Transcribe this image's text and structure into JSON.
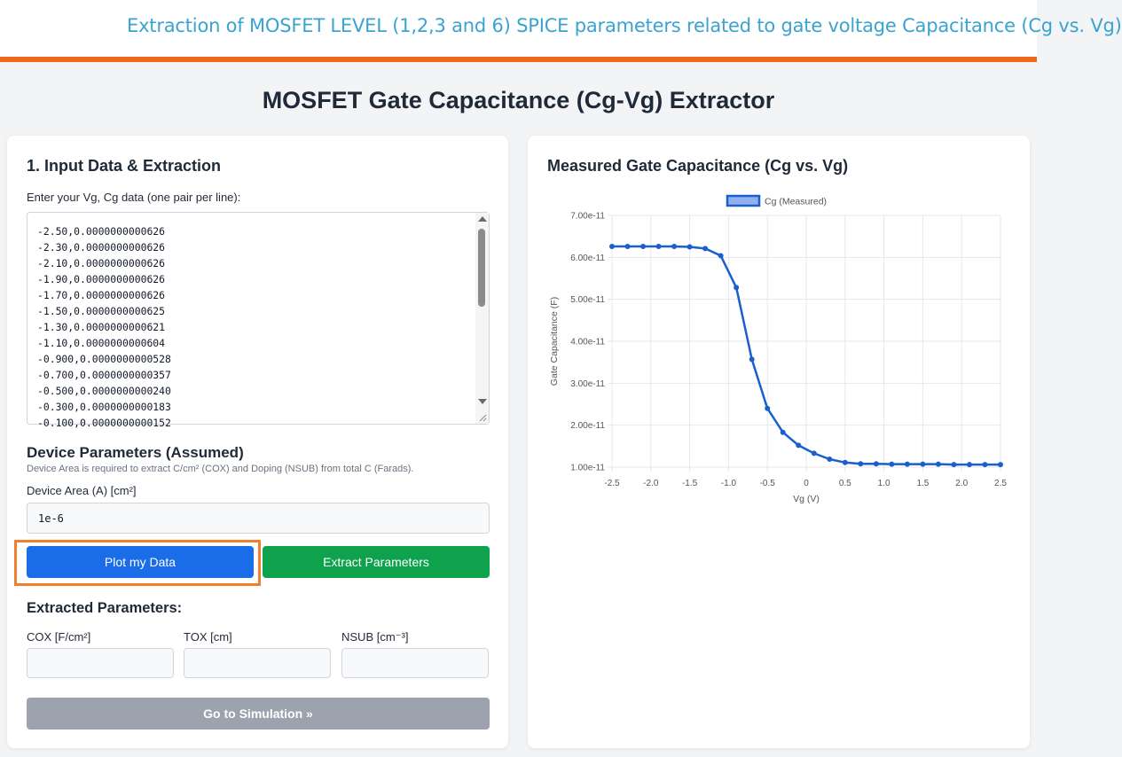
{
  "header": {
    "banner": "Extraction of MOSFET LEVEL (1,2,3 and 6) SPICE parameters related to gate voltage Capacitance (Cg vs. Vg)",
    "page_title": "MOSFET Gate Capacitance (Cg-Vg) Extractor"
  },
  "input_panel": {
    "title": "1. Input Data & Extraction",
    "data_label": "Enter your Vg, Cg data (one pair per line):",
    "data_lines": [
      "-2.50,0.0000000000626",
      "-2.30,0.0000000000626",
      "-2.10,0.0000000000626",
      "-1.90,0.0000000000626",
      "-1.70,0.0000000000626",
      "-1.50,0.0000000000625",
      "-1.30,0.0000000000621",
      "-1.10,0.0000000000604",
      "-0.900,0.0000000000528",
      "-0.700,0.0000000000357",
      "-0.500,0.0000000000240",
      "-0.300,0.0000000000183",
      "-0.100,0.0000000000152"
    ],
    "device_title": "Device Parameters (Assumed)",
    "device_note": "Device Area is required to extract C/cm² (COX) and Doping (NSUB) from total C (Farads).",
    "area_label": "Device Area (A) [cm²]",
    "area_value": "1e-6",
    "plot_button": "Plot my Data",
    "extract_button": "Extract Parameters",
    "results_title": "Extracted Parameters:",
    "cox_label": "COX [F/cm²]",
    "tox_label": "TOX [cm]",
    "nsub_label": "NSUB [cm⁻³]",
    "cox_value": "",
    "tox_value": "",
    "nsub_value": "",
    "sim_button": "Go to Simulation »"
  },
  "chart_panel": {
    "title": "Measured Gate Capacitance (Cg vs. Vg)"
  },
  "chart_data": {
    "type": "line",
    "legend": "top",
    "xlabel": "Vg (V)",
    "ylabel": "Gate Capacitance (F)",
    "xlim": [
      -2.5,
      2.5
    ],
    "ylim": [
      1e-11,
      7e-11
    ],
    "xticks": [
      "-2.5",
      "-2.0",
      "-1.5",
      "-1.0",
      "-0.5",
      "0",
      "0.5",
      "1.0",
      "1.5",
      "2.0",
      "2.5"
    ],
    "yticks": [
      "1.00e-11",
      "2.00e-11",
      "3.00e-11",
      "4.00e-11",
      "5.00e-11",
      "6.00e-11",
      "7.00e-11"
    ],
    "grid": true,
    "series": [
      {
        "name": "Cg (Measured)",
        "color": "#1a5fd0",
        "x": [
          -2.5,
          -2.3,
          -2.1,
          -1.9,
          -1.7,
          -1.5,
          -1.3,
          -1.1,
          -0.9,
          -0.7,
          -0.5,
          -0.3,
          -0.1,
          0.1,
          0.3,
          0.5,
          0.7,
          0.9,
          1.1,
          1.3,
          1.5,
          1.7,
          1.9,
          2.1,
          2.3,
          2.5
        ],
        "y": [
          6.26e-11,
          6.26e-11,
          6.26e-11,
          6.26e-11,
          6.26e-11,
          6.25e-11,
          6.21e-11,
          6.04e-11,
          5.28e-11,
          3.57e-11,
          2.4e-11,
          1.83e-11,
          1.52e-11,
          1.33e-11,
          1.19e-11,
          1.11e-11,
          1.08e-11,
          1.08e-11,
          1.07e-11,
          1.07e-11,
          1.07e-11,
          1.07e-11,
          1.06e-11,
          1.06e-11,
          1.06e-11,
          1.06e-11
        ]
      }
    ]
  }
}
